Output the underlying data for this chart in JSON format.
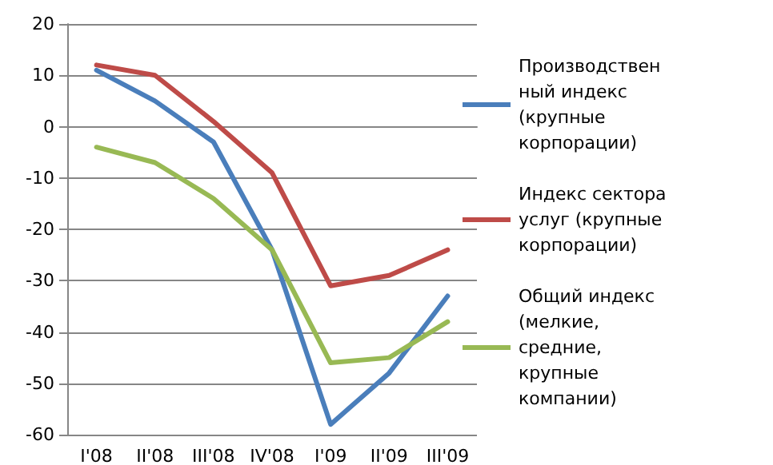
{
  "chart_data": {
    "type": "line",
    "categories": [
      "I'08",
      "II'08",
      "III'08",
      "IV'08",
      "I'09",
      "II'09",
      "III'09"
    ],
    "series": [
      {
        "name": "Производственный индекс (крупные корпорации)",
        "color": "#4a7ebb",
        "values": [
          11,
          5,
          -3,
          -24,
          -58,
          -48,
          -33
        ]
      },
      {
        "name": "Индекс сектора услуг (крупные корпорации)",
        "color": "#be4b48",
        "values": [
          12,
          10,
          1,
          -9,
          -31,
          -29,
          -24
        ]
      },
      {
        "name": "Общий индекс (мелкие, средние, крупные компании)",
        "color": "#98b954",
        "values": [
          -4,
          -7,
          -14,
          -24,
          -46,
          -45,
          -38
        ]
      }
    ],
    "ylim": [
      -60,
      20
    ],
    "yticks": [
      -60,
      -50,
      -40,
      -30,
      -20,
      -10,
      0,
      10,
      20
    ],
    "grid": "y",
    "legend": "right",
    "marker": "none"
  }
}
